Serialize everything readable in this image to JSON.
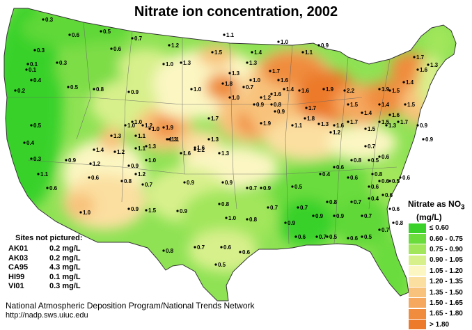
{
  "title": "Nitrate ion concentration, 2002",
  "legend": {
    "title": "Nitrate as NO",
    "title_sub": "3",
    "unit": "(mg/L)",
    "items": [
      {
        "label": "≤ 0.60",
        "color": "#39d12a"
      },
      {
        "label": "0.60 - 0.75",
        "color": "#6adc3c"
      },
      {
        "label": "0.75 - 0.90",
        "color": "#a2e65c"
      },
      {
        "label": "0.90 - 1.05",
        "color": "#d8f08c"
      },
      {
        "label": "1.05 - 1.20",
        "color": "#fbf6c2"
      },
      {
        "label": "1.20 - 1.35",
        "color": "#fbdfa0"
      },
      {
        "label": "1.35 - 1.50",
        "color": "#f8c27c"
      },
      {
        "label": "1.50 - 1.65",
        "color": "#f5a85e"
      },
      {
        "label": "1.65 - 1.80",
        "color": "#f08c3e"
      },
      {
        "label": "> 1.80",
        "color": "#ec7a2a"
      }
    ]
  },
  "not_pictured": {
    "title": "Sites not pictured:",
    "sites": [
      {
        "site": "AK01",
        "value": "0.2 mg/L"
      },
      {
        "site": "AK03",
        "value": "0.2 mg/L"
      },
      {
        "site": "CA95",
        "value": "4.3 mg/L"
      },
      {
        "site": "HI99",
        "value": "0.1 mg/L"
      },
      {
        "site": "VI01",
        "value": "0.3 mg/L"
      }
    ]
  },
  "footer": {
    "org": "National Atmospheric Deposition Program/National Trends Network",
    "url": "http://nadp.sws.uiuc.edu"
  },
  "site_labels": [
    "0.3",
    "0.6",
    "0.5",
    "0.7",
    "0.6",
    "0.3",
    "0.3",
    "0.1",
    "0.1",
    "0.4",
    "0.5",
    "0.2",
    "0.8",
    "0.9",
    "1.0",
    "1.3",
    "1.2",
    "1.0",
    "1.5",
    "1.3",
    "1.4",
    "1.3",
    "1.1",
    "1.0",
    "1.1",
    "0.9",
    "1.8",
    "1.7",
    "1.6",
    "1.6",
    "1.4",
    "1.9",
    "2.2",
    "1.9",
    "1.5",
    "1.4",
    "1.6",
    "1.3",
    "1.7",
    "1.6",
    "1.7",
    "1.8",
    "1.3",
    "1.1",
    "0.9",
    "1.2",
    "0.9",
    "0.8",
    "0.7",
    "1.0",
    "1.0",
    "1.9",
    "1.6",
    "1.7",
    "1.9",
    "1.5",
    "1.4",
    "1.4",
    "1.6",
    "1.7",
    "1.5",
    "1.3",
    "1.5",
    "1.5",
    "1.7",
    "1.6",
    "1.2",
    "0.9",
    "0.9",
    "0.5",
    "0.4",
    "0.3",
    "0.6",
    "1.1",
    "1.4",
    "1.2",
    "1.1",
    "1.0",
    "1.1",
    "1.6",
    "1.2",
    "1.3",
    "1.3",
    "1.3",
    "1.2",
    "0.9",
    "1.0",
    "1.0",
    "1.0",
    "1.2",
    "1.1",
    "0.9",
    "0.8",
    "0.9",
    "0.9",
    "0.7",
    "0.9",
    "0.5",
    "0.6",
    "0.5",
    "0.6",
    "0.7",
    "1.3",
    "1.3",
    "1.2",
    "1.0",
    "0.9",
    "1.5",
    "0.9",
    "0.8",
    "1.0",
    "0.8",
    "0.7",
    "0.7",
    "0.9",
    "0.8",
    "0.9",
    "0.7",
    "0.7",
    "0.8",
    "0.6",
    "0.6",
    "0.5",
    "0.6",
    "0.4",
    "0.6",
    "0.8",
    "0.7",
    "0.6",
    "0.6",
    "0.4",
    "0.6",
    "0.8",
    "0.7",
    "0.5",
    "0.6",
    "0.5",
    "0.7",
    "0.6",
    "0.9",
    "0.6",
    "0.5",
    "0.7",
    "0.6",
    "0.8"
  ]
}
